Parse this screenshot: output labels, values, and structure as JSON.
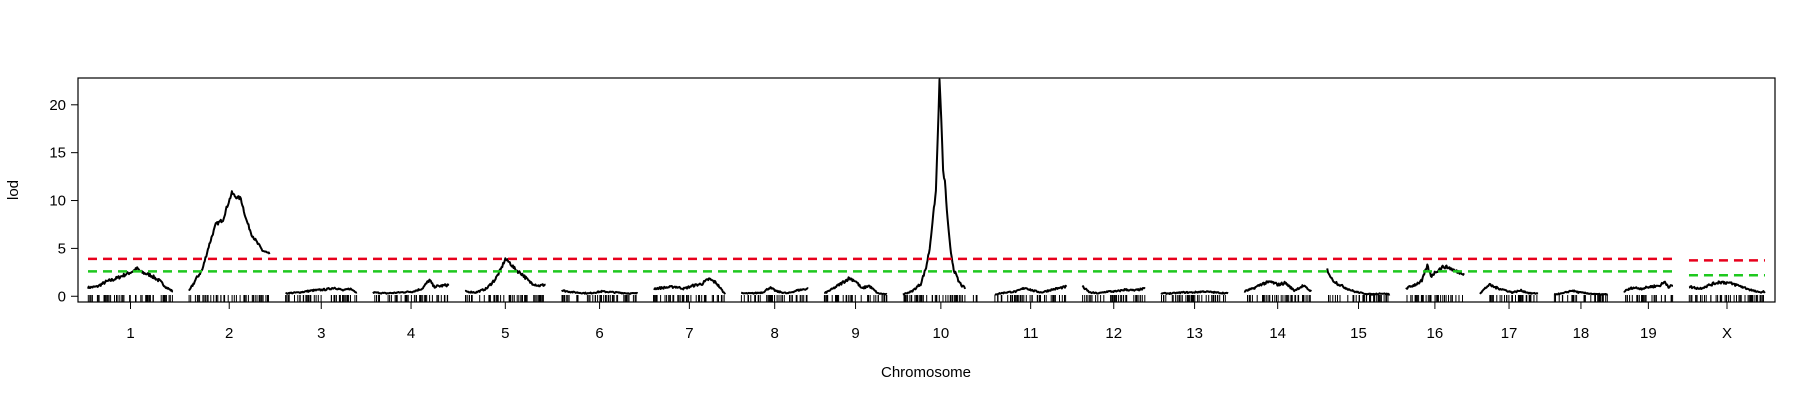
{
  "chart_data": {
    "type": "line",
    "title": "",
    "xlabel": "Chromosome",
    "ylabel": "lod",
    "ylim": [
      -0.6,
      22.8
    ],
    "y_ticks": [
      0,
      5,
      10,
      15,
      20
    ],
    "grid": false,
    "legend": "none",
    "chromosomes": [
      {
        "name": "1",
        "length": 95,
        "profile": [
          [
            0,
            0.9
          ],
          [
            10,
            1.0
          ],
          [
            20,
            1.5
          ],
          [
            30,
            1.8
          ],
          [
            40,
            2.2
          ],
          [
            50,
            2.6
          ],
          [
            55,
            2.9
          ],
          [
            60,
            2.5
          ],
          [
            70,
            2.2
          ],
          [
            80,
            1.6
          ],
          [
            88,
            0.9
          ],
          [
            95,
            0.5
          ]
        ]
      },
      {
        "name": "2",
        "length": 90,
        "profile": [
          [
            0,
            0.5
          ],
          [
            8,
            1.8
          ],
          [
            15,
            2.8
          ],
          [
            22,
            5.2
          ],
          [
            30,
            7.5
          ],
          [
            38,
            8.0
          ],
          [
            42,
            9.2
          ],
          [
            48,
            10.8
          ],
          [
            52,
            10.4
          ],
          [
            58,
            10.2
          ],
          [
            64,
            8.0
          ],
          [
            70,
            6.5
          ],
          [
            76,
            5.6
          ],
          [
            82,
            4.8
          ],
          [
            90,
            4.4
          ]
        ]
      },
      {
        "name": "3",
        "length": 80,
        "profile": [
          [
            0,
            0.3
          ],
          [
            15,
            0.4
          ],
          [
            30,
            0.6
          ],
          [
            45,
            0.7
          ],
          [
            55,
            0.9
          ],
          [
            65,
            0.6
          ],
          [
            72,
            0.8
          ],
          [
            80,
            0.4
          ]
        ]
      },
      {
        "name": "4",
        "length": 85,
        "profile": [
          [
            0,
            0.4
          ],
          [
            15,
            0.3
          ],
          [
            30,
            0.4
          ],
          [
            45,
            0.5
          ],
          [
            55,
            0.8
          ],
          [
            63,
            1.7
          ],
          [
            68,
            1.0
          ],
          [
            78,
            1.1
          ],
          [
            85,
            1.2
          ]
        ]
      },
      {
        "name": "5",
        "length": 90,
        "profile": [
          [
            0,
            0.5
          ],
          [
            12,
            0.4
          ],
          [
            24,
            0.8
          ],
          [
            34,
            1.8
          ],
          [
            40,
            2.8
          ],
          [
            45,
            3.9
          ],
          [
            50,
            3.5
          ],
          [
            56,
            2.8
          ],
          [
            64,
            2.3
          ],
          [
            72,
            1.5
          ],
          [
            82,
            1.1
          ],
          [
            90,
            1.2
          ]
        ]
      },
      {
        "name": "6",
        "length": 85,
        "profile": [
          [
            0,
            0.6
          ],
          [
            15,
            0.4
          ],
          [
            30,
            0.3
          ],
          [
            45,
            0.5
          ],
          [
            60,
            0.4
          ],
          [
            75,
            0.3
          ],
          [
            85,
            0.3
          ]
        ]
      },
      {
        "name": "7",
        "length": 80,
        "profile": [
          [
            0,
            0.8
          ],
          [
            12,
            0.9
          ],
          [
            24,
            1.0
          ],
          [
            34,
            0.8
          ],
          [
            44,
            1.1
          ],
          [
            54,
            1.3
          ],
          [
            62,
            1.8
          ],
          [
            70,
            1.4
          ],
          [
            80,
            0.2
          ]
        ]
      },
      {
        "name": "8",
        "length": 75,
        "profile": [
          [
            0,
            0.3
          ],
          [
            12,
            0.3
          ],
          [
            24,
            0.4
          ],
          [
            32,
            0.9
          ],
          [
            40,
            0.5
          ],
          [
            52,
            0.3
          ],
          [
            62,
            0.6
          ],
          [
            75,
            0.8
          ]
        ]
      },
      {
        "name": "9",
        "length": 70,
        "profile": [
          [
            0,
            0.3
          ],
          [
            10,
            0.8
          ],
          [
            20,
            1.4
          ],
          [
            28,
            1.9
          ],
          [
            35,
            1.6
          ],
          [
            42,
            0.8
          ],
          [
            50,
            1.1
          ],
          [
            60,
            0.3
          ],
          [
            70,
            0.2
          ]
        ]
      },
      {
        "name": "10",
        "length": 85,
        "profile": [
          [
            0,
            0.2
          ],
          [
            10,
            0.5
          ],
          [
            20,
            1.3
          ],
          [
            26,
            3.0
          ],
          [
            30,
            5.0
          ],
          [
            34,
            8.5
          ],
          [
            37,
            11.0
          ],
          [
            39,
            16.5
          ],
          [
            41,
            22.5
          ],
          [
            43,
            18.5
          ],
          [
            45,
            13.0
          ],
          [
            47,
            12.0
          ],
          [
            50,
            8.0
          ],
          [
            53,
            5.0
          ],
          [
            57,
            2.8
          ],
          [
            62,
            1.6
          ],
          [
            67,
            1.0
          ],
          [
            70,
            0.9
          ]
        ]
      },
      {
        "name": "11",
        "length": 80,
        "profile": [
          [
            0,
            0.2
          ],
          [
            12,
            0.4
          ],
          [
            24,
            0.5
          ],
          [
            34,
            0.9
          ],
          [
            42,
            0.6
          ],
          [
            52,
            0.4
          ],
          [
            64,
            0.7
          ],
          [
            80,
            1.0
          ]
        ]
      },
      {
        "name": "12",
        "length": 70,
        "profile": [
          [
            0,
            1.0
          ],
          [
            8,
            0.4
          ],
          [
            18,
            0.3
          ],
          [
            28,
            0.5
          ],
          [
            38,
            0.5
          ],
          [
            48,
            0.7
          ],
          [
            58,
            0.6
          ],
          [
            70,
            0.8
          ]
        ]
      },
      {
        "name": "13",
        "length": 75,
        "profile": [
          [
            0,
            0.3
          ],
          [
            12,
            0.3
          ],
          [
            24,
            0.4
          ],
          [
            36,
            0.4
          ],
          [
            48,
            0.5
          ],
          [
            60,
            0.4
          ],
          [
            75,
            0.3
          ]
        ]
      },
      {
        "name": "14",
        "length": 75,
        "profile": [
          [
            0,
            0.5
          ],
          [
            10,
            0.8
          ],
          [
            20,
            1.3
          ],
          [
            30,
            1.5
          ],
          [
            38,
            1.2
          ],
          [
            46,
            1.4
          ],
          [
            56,
            0.6
          ],
          [
            66,
            1.1
          ],
          [
            75,
            0.5
          ]
        ]
      },
      {
        "name": "15",
        "length": 70,
        "profile": [
          [
            0,
            2.8
          ],
          [
            5,
            1.8
          ],
          [
            12,
            1.3
          ],
          [
            20,
            0.9
          ],
          [
            30,
            0.5
          ],
          [
            40,
            0.3
          ],
          [
            50,
            0.2
          ],
          [
            60,
            0.3
          ],
          [
            70,
            0.2
          ]
        ]
      },
      {
        "name": "16",
        "length": 65,
        "profile": [
          [
            0,
            0.8
          ],
          [
            10,
            1.2
          ],
          [
            18,
            1.6
          ],
          [
            24,
            3.2
          ],
          [
            28,
            2.1
          ],
          [
            34,
            2.6
          ],
          [
            42,
            3.1
          ],
          [
            48,
            3.0
          ],
          [
            56,
            2.6
          ],
          [
            65,
            2.4
          ]
        ]
      },
      {
        "name": "17",
        "length": 65,
        "profile": [
          [
            0,
            0.3
          ],
          [
            10,
            1.2
          ],
          [
            18,
            0.9
          ],
          [
            26,
            0.7
          ],
          [
            36,
            0.4
          ],
          [
            46,
            0.6
          ],
          [
            56,
            0.3
          ],
          [
            65,
            0.3
          ]
        ]
      },
      {
        "name": "18",
        "length": 60,
        "profile": [
          [
            0,
            0.2
          ],
          [
            10,
            0.3
          ],
          [
            20,
            0.6
          ],
          [
            28,
            0.4
          ],
          [
            38,
            0.3
          ],
          [
            48,
            0.2
          ],
          [
            60,
            0.2
          ]
        ]
      },
      {
        "name": "19",
        "length": 55,
        "profile": [
          [
            0,
            0.5
          ],
          [
            10,
            0.9
          ],
          [
            20,
            0.8
          ],
          [
            30,
            1.0
          ],
          [
            40,
            1.1
          ],
          [
            46,
            1.5
          ],
          [
            50,
            1.0
          ],
          [
            55,
            1.1
          ]
        ]
      },
      {
        "name": "X",
        "length": 85,
        "profile": [
          [
            0,
            1.0
          ],
          [
            12,
            0.8
          ],
          [
            24,
            1.2
          ],
          [
            34,
            1.5
          ],
          [
            44,
            1.4
          ],
          [
            56,
            1.1
          ],
          [
            68,
            0.7
          ],
          [
            78,
            0.4
          ],
          [
            85,
            0.5
          ]
        ]
      }
    ],
    "thresholds": [
      {
        "color": "#e8001c",
        "autosome": 3.9,
        "x": 3.75
      },
      {
        "color": "#1ec81e",
        "autosome": 2.6,
        "x": 2.2
      }
    ],
    "line_color": "#000000"
  }
}
